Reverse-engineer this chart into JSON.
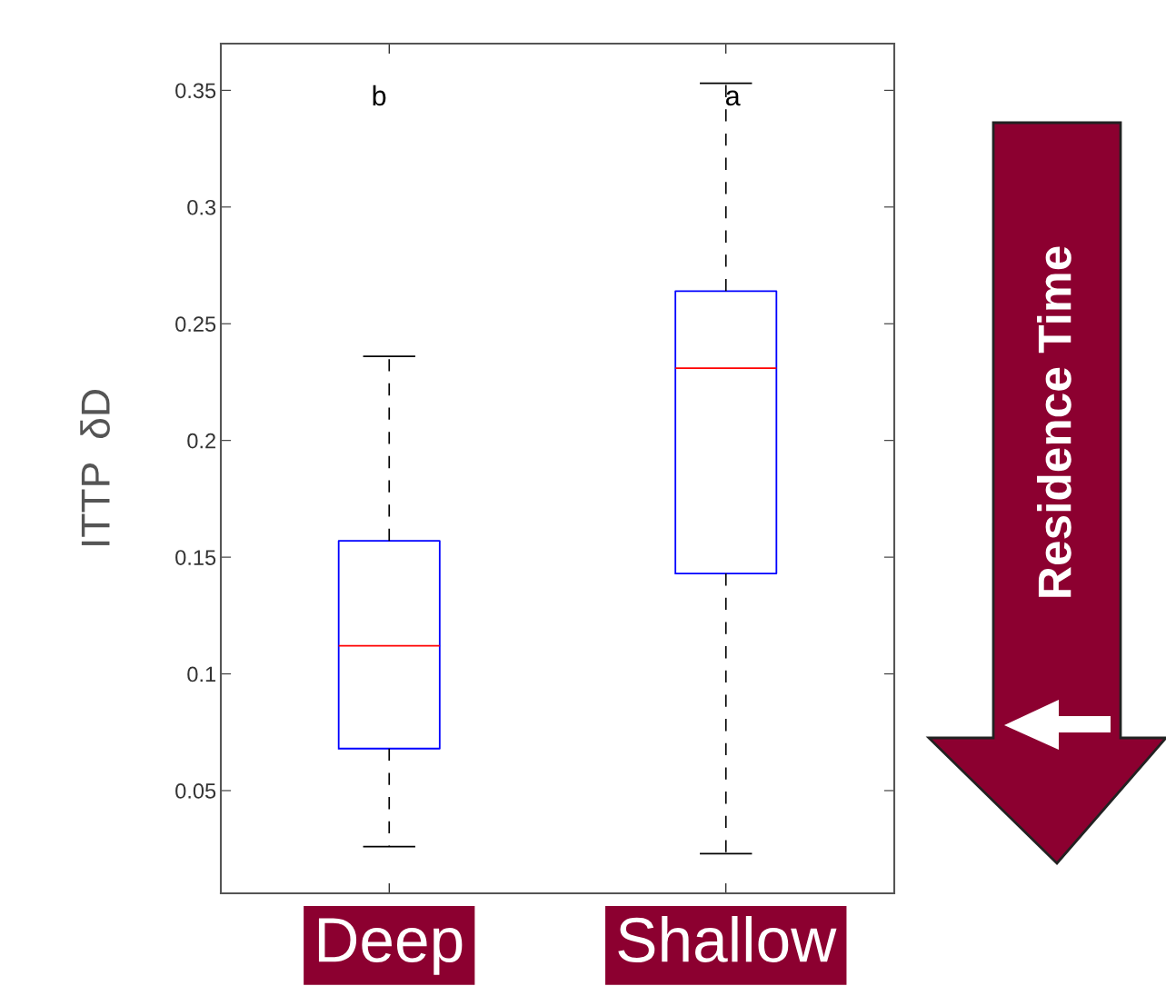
{
  "chart_data": {
    "type": "box",
    "ylabel": "ITTP  δD",
    "categories": [
      "Deep",
      "Shallow"
    ],
    "boxes": [
      {
        "low": 0.026,
        "q1": 0.068,
        "median": 0.112,
        "q3": 0.157,
        "high": 0.236
      },
      {
        "low": 0.023,
        "q1": 0.143,
        "median": 0.231,
        "q3": 0.264,
        "high": 0.353
      }
    ],
    "ylim": [
      0.006,
      0.37
    ],
    "yticks": [
      0.05,
      0.1,
      0.15,
      0.2,
      0.25,
      0.3,
      0.35
    ],
    "grid": false,
    "annotations": [
      "b",
      "a",
      "Residence Time"
    ]
  }
}
